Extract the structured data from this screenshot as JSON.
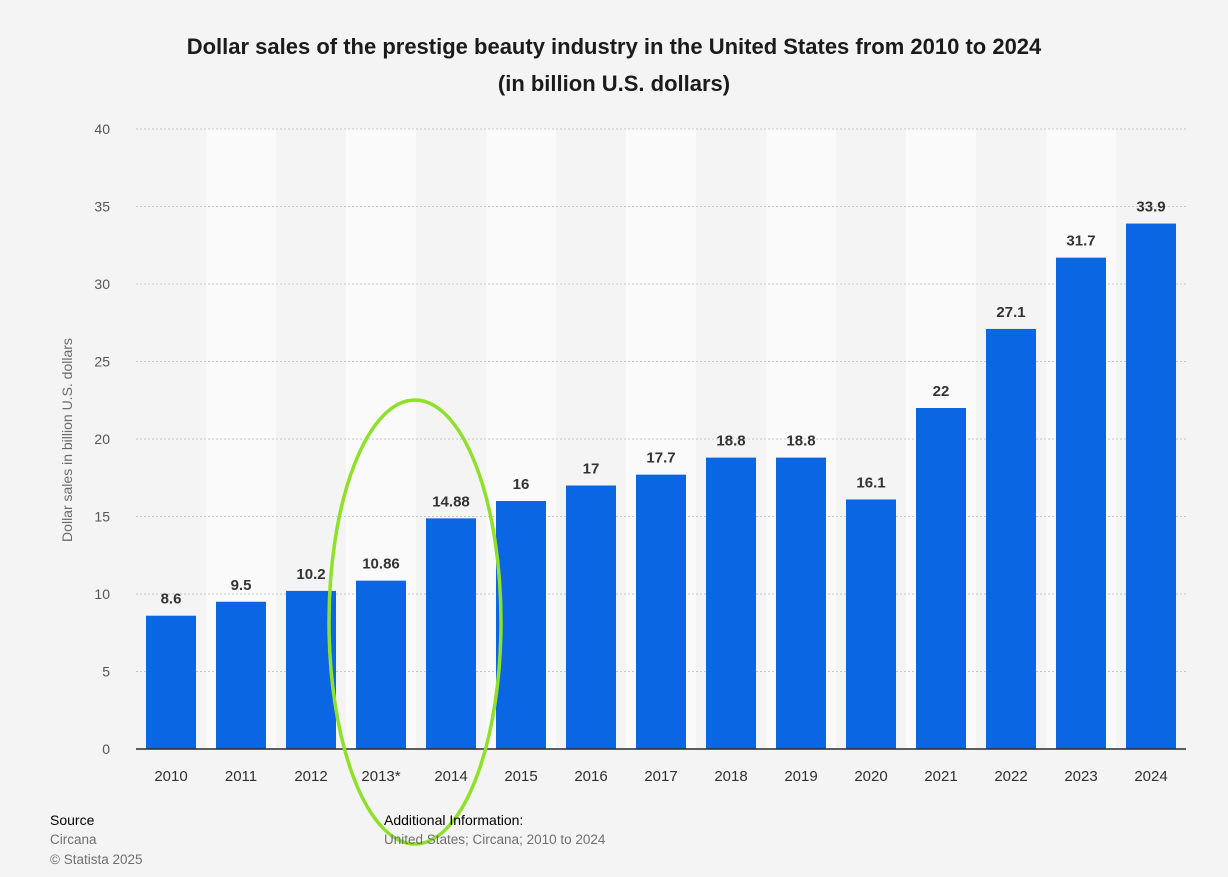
{
  "chart_data": {
    "type": "bar",
    "title": "Dollar sales of the prestige beauty industry in the United States from 2010 to 2024",
    "subtitle": "(in billion U.S. dollars)",
    "ylabel": "Dollar sales in billion U.S. dollars",
    "xlabel": "",
    "categories": [
      "2010",
      "2011",
      "2012",
      "2013*",
      "2014",
      "2015",
      "2016",
      "2017",
      "2018",
      "2019",
      "2020",
      "2021",
      "2022",
      "2023",
      "2024"
    ],
    "values": [
      8.6,
      9.5,
      10.2,
      10.86,
      14.88,
      16,
      17,
      17.7,
      18.8,
      18.8,
      16.1,
      22,
      27.1,
      31.7,
      33.9
    ],
    "data_labels": [
      "8.6",
      "9.5",
      "10.2",
      "10.86",
      "14.88",
      "16",
      "17",
      "17.7",
      "18.8",
      "18.8",
      "16.1",
      "22",
      "27.1",
      "31.7",
      "33.9"
    ],
    "ylim": [
      0,
      40
    ],
    "yticks": [
      "0",
      "5",
      "10",
      "15",
      "20",
      "25",
      "30",
      "35",
      "40"
    ],
    "grid": true,
    "annotation": "green ellipse highlighting 2013* and 2014",
    "colors": {
      "bar": "#0b66e4",
      "highlight_ellipse": "#8fe02b",
      "grid": "#c8c8c8",
      "axis_text": "#555555",
      "data_label": "#333333",
      "column_band": "#fafafa"
    }
  },
  "footer": {
    "source_heading": "Source",
    "source_name": "Circana",
    "copyright": "© Statista 2025",
    "additional_heading": "Additional Information:",
    "additional_text": "United States; Circana; 2010 to 2024"
  }
}
